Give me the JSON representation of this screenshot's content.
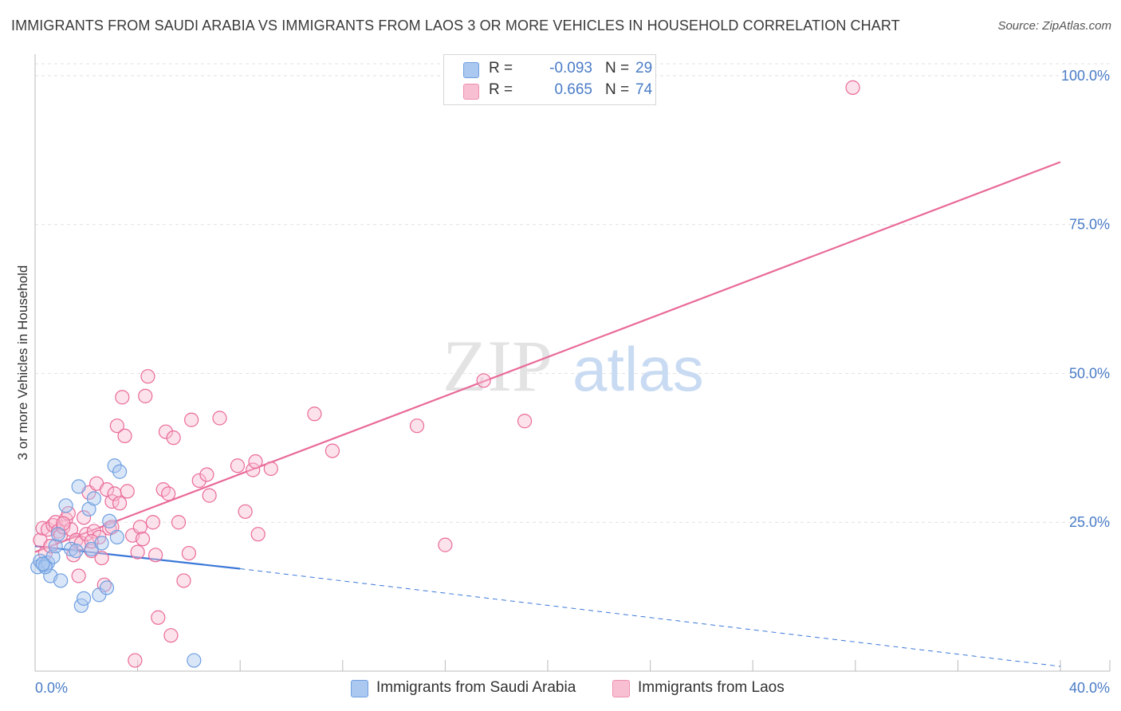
{
  "title": "IMMIGRANTS FROM SAUDI ARABIA VS IMMIGRANTS FROM LAOS 3 OR MORE VEHICLES IN HOUSEHOLD CORRELATION CHART",
  "source": "Source: ZipAtlas.com",
  "watermark": {
    "zip": "ZIP",
    "atlas": "atlas"
  },
  "legend": {
    "rows": [
      {
        "r_label": "R =",
        "r_value": "-0.093",
        "n_label": "N =",
        "n_value": "29",
        "color": "#aac8f0",
        "border": "#6f9fe0"
      },
      {
        "r_label": "R =",
        "r_value": "0.665",
        "n_label": "N =",
        "n_value": "74",
        "color": "#f8bfd3",
        "border": "#ee8fb0"
      }
    ]
  },
  "bottom_legend": [
    {
      "label": "Immigrants from Saudi Arabia",
      "color": "#aac8f0",
      "border": "#6f9fe0"
    },
    {
      "label": "Immigrants from Laos",
      "color": "#f8bfd3",
      "border": "#ee8fb0"
    }
  ],
  "chart_data": {
    "type": "scatter",
    "title": "IMMIGRANTS FROM SAUDI ARABIA VS IMMIGRANTS FROM LAOS 3 OR MORE VEHICLES IN HOUSEHOLD CORRELATION CHART",
    "xlabel": "",
    "ylabel": "3 or more Vehicles in Household",
    "xlim": [
      0,
      40
    ],
    "ylim": [
      0,
      102
    ],
    "x_tick_labels": [
      {
        "value": 0,
        "label": "0.0%"
      },
      {
        "value": 40,
        "label": "40.0%"
      }
    ],
    "y_tick_labels": [
      {
        "value": 25,
        "label": "25.0%"
      },
      {
        "value": 50,
        "label": "50.0%"
      },
      {
        "value": 75,
        "label": "75.0%"
      },
      {
        "value": 100,
        "label": "100.0%"
      }
    ],
    "grid": true,
    "legend_position": "top-center",
    "series": [
      {
        "name": "Immigrants from Saudi Arabia",
        "color": "#6f9fe0",
        "fill": "#aac8f0",
        "points": [
          [
            0.1,
            17.5
          ],
          [
            0.2,
            18.5
          ],
          [
            0.3,
            18.0
          ],
          [
            0.4,
            17.8
          ],
          [
            0.5,
            18.2
          ],
          [
            0.6,
            16.0
          ],
          [
            0.7,
            19.2
          ],
          [
            0.8,
            21.0
          ],
          [
            0.9,
            23.0
          ],
          [
            1.0,
            15.2
          ],
          [
            1.2,
            27.8
          ],
          [
            1.4,
            20.5
          ],
          [
            1.6,
            20.2
          ],
          [
            1.7,
            31.0
          ],
          [
            1.8,
            11.0
          ],
          [
            1.9,
            12.2
          ],
          [
            2.1,
            27.2
          ],
          [
            2.2,
            20.5
          ],
          [
            2.3,
            29.0
          ],
          [
            2.5,
            12.8
          ],
          [
            2.6,
            21.5
          ],
          [
            2.8,
            14.0
          ],
          [
            2.9,
            25.2
          ],
          [
            3.1,
            34.5
          ],
          [
            3.2,
            22.5
          ],
          [
            3.3,
            33.5
          ],
          [
            6.2,
            1.8
          ],
          [
            0.4,
            17.5
          ],
          [
            0.3,
            18.0
          ]
        ],
        "trend": {
          "x0": 0,
          "y0": 21.0,
          "x1": 8,
          "y1": 17.2,
          "dash_to_x": 40,
          "dash_to_y": 0.8
        }
      },
      {
        "name": "Immigrants from Laos",
        "color": "#e96a98",
        "fill": "#f8bfd3",
        "points": [
          [
            0.2,
            22.0
          ],
          [
            0.3,
            24.0
          ],
          [
            0.4,
            19.8
          ],
          [
            0.5,
            23.8
          ],
          [
            0.6,
            21.0
          ],
          [
            0.7,
            24.5
          ],
          [
            0.8,
            25.0
          ],
          [
            0.9,
            23.5
          ],
          [
            1.0,
            22.8
          ],
          [
            1.1,
            24.2
          ],
          [
            1.2,
            25.5
          ],
          [
            1.3,
            26.5
          ],
          [
            1.4,
            23.8
          ],
          [
            1.5,
            19.5
          ],
          [
            1.6,
            22.0
          ],
          [
            1.7,
            16.0
          ],
          [
            1.8,
            21.5
          ],
          [
            1.9,
            25.8
          ],
          [
            2.0,
            23.0
          ],
          [
            2.1,
            30.0
          ],
          [
            2.2,
            20.2
          ],
          [
            2.3,
            23.5
          ],
          [
            2.4,
            31.5
          ],
          [
            2.5,
            22.5
          ],
          [
            2.6,
            19.0
          ],
          [
            2.7,
            14.5
          ],
          [
            2.8,
            30.5
          ],
          [
            2.9,
            24.0
          ],
          [
            3.0,
            28.5
          ],
          [
            3.1,
            29.8
          ],
          [
            3.2,
            41.2
          ],
          [
            3.3,
            28.2
          ],
          [
            3.4,
            46.0
          ],
          [
            3.5,
            39.5
          ],
          [
            3.6,
            30.2
          ],
          [
            3.8,
            22.8
          ],
          [
            3.9,
            1.8
          ],
          [
            4.0,
            20.0
          ],
          [
            4.1,
            24.2
          ],
          [
            4.2,
            22.2
          ],
          [
            4.3,
            46.2
          ],
          [
            4.4,
            49.5
          ],
          [
            4.6,
            25.0
          ],
          [
            4.7,
            19.5
          ],
          [
            4.8,
            9.0
          ],
          [
            5.0,
            30.5
          ],
          [
            5.1,
            40.2
          ],
          [
            5.2,
            29.8
          ],
          [
            5.3,
            6.0
          ],
          [
            5.4,
            39.2
          ],
          [
            5.6,
            25.0
          ],
          [
            5.8,
            15.2
          ],
          [
            6.0,
            19.8
          ],
          [
            6.1,
            42.2
          ],
          [
            6.4,
            32.0
          ],
          [
            6.7,
            33.0
          ],
          [
            6.8,
            29.5
          ],
          [
            7.2,
            42.5
          ],
          [
            7.9,
            34.5
          ],
          [
            8.2,
            26.8
          ],
          [
            8.5,
            33.8
          ],
          [
            8.6,
            35.2
          ],
          [
            8.7,
            23.0
          ],
          [
            9.2,
            34.0
          ],
          [
            10.9,
            43.2
          ],
          [
            11.6,
            37.0
          ],
          [
            14.9,
            41.2
          ],
          [
            16.0,
            21.2
          ],
          [
            17.5,
            48.8
          ],
          [
            19.1,
            42.0
          ],
          [
            31.9,
            98.0
          ],
          [
            1.1,
            24.8
          ],
          [
            2.2,
            21.8
          ],
          [
            3.0,
            24.2
          ]
        ],
        "trend": {
          "x0": 0,
          "y0": 20.0,
          "x1": 40,
          "y1": 85.5
        }
      }
    ]
  }
}
